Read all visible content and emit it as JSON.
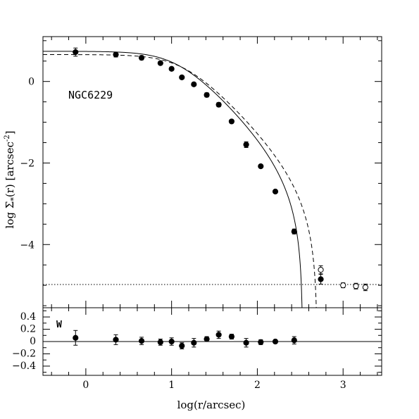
{
  "chart_data": [
    {
      "type": "scatter",
      "panel": "top",
      "ylabel_text": "log Σ",
      "ylabel_sub": "*",
      "ylabel_rest": "(r) [arcsec",
      "ylabel_sup": "-2",
      "ylabel_end": "]",
      "annotation": "NGC6229",
      "xlim": [
        -0.5,
        3.45
      ],
      "ylim": [
        -5.55,
        1.1
      ],
      "yticks_major": [
        0,
        -2,
        -4
      ],
      "ytick_labels": [
        "0",
        "−2",
        "−4"
      ],
      "background_level": -4.98,
      "filled_points": [
        {
          "x": -0.12,
          "y": 0.72,
          "err": 0.1
        },
        {
          "x": 0.35,
          "y": 0.66,
          "err": 0.06
        },
        {
          "x": 0.65,
          "y": 0.58,
          "err": 0.05
        },
        {
          "x": 0.87,
          "y": 0.45,
          "err": 0.04
        },
        {
          "x": 1.0,
          "y": 0.31,
          "err": 0.04
        },
        {
          "x": 1.12,
          "y": 0.1,
          "err": 0.04
        },
        {
          "x": 1.26,
          "y": -0.07,
          "err": 0.04
        },
        {
          "x": 1.41,
          "y": -0.33,
          "err": 0.05
        },
        {
          "x": 1.55,
          "y": -0.57,
          "err": 0.05
        },
        {
          "x": 1.7,
          "y": -0.98,
          "err": 0.04
        },
        {
          "x": 1.87,
          "y": -1.55,
          "err": 0.07
        },
        {
          "x": 2.04,
          "y": -2.08,
          "err": 0.04
        },
        {
          "x": 2.21,
          "y": -2.7,
          "err": 0.04
        },
        {
          "x": 2.43,
          "y": -3.68,
          "err": 0.06
        },
        {
          "x": 2.74,
          "y": -4.85,
          "err": 0.12
        }
      ],
      "open_points": [
        {
          "x": 2.74,
          "y": -4.62,
          "err": 0.1
        },
        {
          "x": 3.0,
          "y": -5.0,
          "err": 0.06
        },
        {
          "x": 3.15,
          "y": -5.02,
          "err": 0.07
        },
        {
          "x": 3.26,
          "y": -5.05,
          "err": 0.08
        }
      ],
      "models": [
        {
          "style": "solid",
          "log_sigma0": 0.74,
          "log_rc": 1.05,
          "log_rt": 2.53
        },
        {
          "style": "dashed",
          "log_sigma0": 0.66,
          "log_rc": 1.12,
          "log_rt": 2.7
        }
      ]
    },
    {
      "type": "scatter",
      "panel": "bottom",
      "annotation": "W",
      "xlabel": "log(r/arcsec)",
      "xlim": [
        -0.5,
        3.45
      ],
      "ylim": [
        -0.55,
        0.55
      ],
      "xticks_major": [
        0,
        1,
        2,
        3
      ],
      "xtick_labels": [
        "0",
        "1",
        "2",
        "3"
      ],
      "yticks_major": [
        0.4,
        0.2,
        0,
        -0.2,
        -0.4
      ],
      "ytick_labels": [
        "0.4",
        "0.2",
        "0",
        "−0.2",
        "−0.4"
      ],
      "zero_line": 0,
      "points": [
        {
          "x": -0.12,
          "y": 0.06,
          "err": 0.12
        },
        {
          "x": 0.35,
          "y": 0.03,
          "err": 0.08
        },
        {
          "x": 0.65,
          "y": 0.01,
          "err": 0.06
        },
        {
          "x": 0.87,
          "y": -0.01,
          "err": 0.05
        },
        {
          "x": 1.0,
          "y": 0.0,
          "err": 0.06
        },
        {
          "x": 1.12,
          "y": -0.07,
          "err": 0.05
        },
        {
          "x": 1.26,
          "y": -0.02,
          "err": 0.07
        },
        {
          "x": 1.41,
          "y": 0.04,
          "err": 0.04
        },
        {
          "x": 1.55,
          "y": 0.11,
          "err": 0.06
        },
        {
          "x": 1.7,
          "y": 0.08,
          "err": 0.04
        },
        {
          "x": 1.87,
          "y": -0.02,
          "err": 0.07
        },
        {
          "x": 2.04,
          "y": -0.01,
          "err": 0.04
        },
        {
          "x": 2.21,
          "y": 0.0,
          "err": 0.03
        },
        {
          "x": 2.43,
          "y": 0.02,
          "err": 0.06
        }
      ]
    }
  ]
}
